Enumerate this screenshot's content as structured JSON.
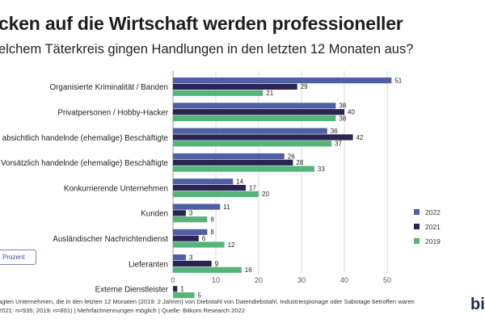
{
  "title": "cken auf die Wirtschaft werden professioneller",
  "subtitle": "elchem Täterkreis gingen Handlungen in den letzten 12 Monaten aus?",
  "unit_label": "Prozent",
  "footnote": {
    "line1": "agten Unternehmen, die in den letzten 12 Monaten (2019: 2 Jahren) von Diebstahl von Datendiebstahl, Industriespionage oder Sabotage betroffen waren",
    "line2": "2021: n=935; 2019: n=801) | Mehrfachnennungen möglich | Quelle: Bitkom Research 2022"
  },
  "brand": "bit",
  "colors": {
    "2022": "#4e5fa3",
    "2021": "#2b2452",
    "2019": "#55b47a",
    "grid": "#d8d8d8",
    "axis": "#999999"
  },
  "chart_data": {
    "type": "bar",
    "orientation": "horizontal",
    "categories": [
      "Organisierte Kriminalität / Banden",
      "Privatpersonen / Hobby-Hacker",
      "absichtlich handelnde (ehemalige) Beschäftigte",
      "Vorsätzlich handelnde (ehemalige) Beschäftigte",
      "Konkurrierende Unternehmen",
      "Kunden",
      "Ausländischer Nachrichtendienst",
      "Lieferanten",
      "Externe Dienstleister"
    ],
    "series": [
      {
        "name": "2022",
        "values": [
          51,
          38,
          36,
          26,
          14,
          11,
          8,
          3,
          null
        ]
      },
      {
        "name": "2021",
        "values": [
          29,
          40,
          42,
          28,
          17,
          3,
          6,
          9,
          1
        ]
      },
      {
        "name": "2019",
        "values": [
          21,
          38,
          37,
          33,
          20,
          8,
          12,
          16,
          5
        ]
      }
    ],
    "xlim": [
      0,
      50
    ],
    "xticks": [
      0,
      10,
      20,
      30,
      40,
      50
    ],
    "grid": true,
    "legend_position": "right"
  }
}
